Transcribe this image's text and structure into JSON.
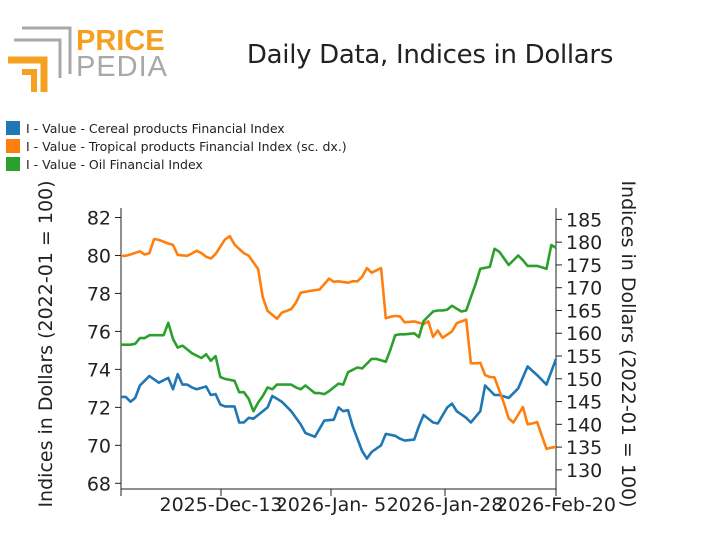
{
  "logo": {
    "line1": "PRICE",
    "line2": "PEDIA",
    "orange": "#f5a020",
    "gray": "#a8a8a8"
  },
  "chart_data": {
    "type": "line",
    "title": "Daily Data, Indices in Dollars",
    "ylabel_left": "Indices in Dollars (2022-01 = 100)",
    "ylabel_right": "Indices in Dollars (2022-01 = 100)",
    "xlabel": "",
    "x_ticks": [
      "2025-Dec-13",
      "2026-Jan- 5",
      "2026-Jan-28",
      "2026-Feb-20"
    ],
    "x_start": "2025-11-20",
    "x_end": "2026-02-20",
    "y_left": {
      "lim": [
        67.7,
        82.5
      ],
      "ticks": [
        68,
        70,
        72,
        74,
        76,
        78,
        80,
        82
      ]
    },
    "y_right": {
      "lim": [
        125.8,
        187.5
      ],
      "ticks": [
        130,
        135,
        140,
        145,
        150,
        155,
        160,
        165,
        170,
        175,
        180,
        185
      ]
    },
    "grid": false,
    "legend_position": "top-left",
    "series": [
      {
        "name": "I - Value - Cereal products Financial Index",
        "color": "#1f77b4",
        "axis": "left",
        "x": [
          "2025-11-20",
          "2025-11-21",
          "2025-11-22",
          "2025-11-23",
          "2025-11-24",
          "2025-11-26",
          "2025-11-28",
          "2025-11-30",
          "2025-12-01",
          "2025-12-02",
          "2025-12-03",
          "2025-12-04",
          "2025-12-05",
          "2025-12-06",
          "2025-12-08",
          "2025-12-09",
          "2025-12-10",
          "2025-12-11",
          "2025-12-12",
          "2025-12-14",
          "2025-12-15",
          "2025-12-16",
          "2025-12-17",
          "2025-12-18",
          "2025-12-19",
          "2025-12-21",
          "2025-12-22",
          "2025-12-23",
          "2025-12-24",
          "2025-12-26",
          "2025-12-28",
          "2025-12-29",
          "2025-12-31",
          "2026-01-02",
          "2026-01-04",
          "2026-01-05",
          "2026-01-06",
          "2026-01-07",
          "2026-01-08",
          "2026-01-10",
          "2026-01-11",
          "2026-01-12",
          "2026-01-14",
          "2026-01-15",
          "2026-01-17",
          "2026-01-18",
          "2026-01-19",
          "2026-01-21",
          "2026-01-22",
          "2026-01-23",
          "2026-01-25",
          "2026-01-26",
          "2026-01-28",
          "2026-01-29",
          "2026-01-30",
          "2026-02-01",
          "2026-02-02",
          "2026-02-04",
          "2026-02-05",
          "2026-02-07",
          "2026-02-08",
          "2026-02-10",
          "2026-02-12",
          "2026-02-14",
          "2026-02-16",
          "2026-02-18",
          "2026-02-20"
        ],
        "values": [
          72.55,
          72.55,
          72.3,
          72.5,
          73.15,
          73.65,
          73.3,
          73.55,
          72.95,
          73.75,
          73.2,
          73.2,
          73.05,
          72.95,
          73.1,
          72.65,
          72.7,
          72.15,
          72.05,
          72.05,
          71.2,
          71.2,
          71.45,
          71.4,
          71.6,
          72.0,
          72.6,
          72.45,
          72.3,
          71.8,
          71.1,
          70.65,
          70.45,
          71.3,
          71.35,
          72.0,
          71.8,
          71.85,
          71.0,
          69.7,
          69.3,
          69.65,
          70.0,
          70.6,
          70.5,
          70.35,
          70.25,
          70.3,
          71.0,
          71.6,
          71.2,
          71.15,
          72.0,
          72.2,
          71.8,
          71.45,
          71.2,
          71.8,
          73.15,
          72.65,
          72.65,
          72.5,
          73.0,
          74.15,
          73.7,
          73.2,
          74.55
        ]
      },
      {
        "name": "I - Value - Tropical products Financial Index (sc. dx.)",
        "color": "#ff7f0e",
        "axis": "right",
        "x": [
          "2025-11-20",
          "2025-11-21",
          "2025-11-22",
          "2025-11-24",
          "2025-11-25",
          "2025-11-26",
          "2025-11-27",
          "2025-11-28",
          "2025-11-30",
          "2025-12-01",
          "2025-12-02",
          "2025-12-04",
          "2025-12-05",
          "2025-12-06",
          "2025-12-07",
          "2025-12-08",
          "2025-12-09",
          "2025-12-10",
          "2025-12-12",
          "2025-12-13",
          "2025-12-14",
          "2025-12-15",
          "2025-12-16",
          "2025-12-17",
          "2025-12-19",
          "2025-12-20",
          "2025-12-21",
          "2025-12-23",
          "2025-12-24",
          "2025-12-26",
          "2025-12-27",
          "2025-12-28",
          "2025-12-30",
          "2026-01-01",
          "2026-01-02",
          "2026-01-03",
          "2026-01-04",
          "2026-01-05",
          "2026-01-07",
          "2026-01-08",
          "2026-01-09",
          "2026-01-10",
          "2026-01-11",
          "2026-01-12",
          "2026-01-14",
          "2026-01-15",
          "2026-01-16",
          "2026-01-17",
          "2026-01-18",
          "2026-01-19",
          "2026-01-21",
          "2026-01-23",
          "2026-01-24",
          "2026-01-25",
          "2026-01-26",
          "2026-01-27",
          "2026-01-29",
          "2026-01-30",
          "2026-02-01",
          "2026-02-02",
          "2026-02-03",
          "2026-02-04",
          "2026-02-05",
          "2026-02-06",
          "2026-02-07",
          "2026-02-09",
          "2026-02-10",
          "2026-02-11",
          "2026-02-13",
          "2026-02-14",
          "2026-02-15",
          "2026-02-16",
          "2026-02-18",
          "2026-02-19",
          "2026-02-20"
        ],
        "values": [
          177.0,
          177.0,
          177.3,
          178.0,
          177.3,
          177.6,
          180.7,
          180.5,
          179.7,
          179.4,
          177.2,
          177.0,
          177.5,
          178.1,
          177.6,
          176.8,
          176.4,
          177.4,
          180.6,
          181.3,
          179.5,
          178.5,
          177.6,
          177.0,
          174.1,
          167.9,
          164.9,
          163.2,
          164.5,
          165.3,
          166.7,
          168.9,
          169.3,
          169.6,
          170.8,
          172.0,
          171.3,
          171.4,
          171.1,
          171.4,
          171.4,
          172.4,
          174.3,
          173.3,
          174.3,
          163.3,
          163.6,
          163.8,
          163.7,
          162.4,
          162.6,
          162.0,
          162.6,
          159.2,
          160.6,
          159.0,
          160.4,
          162.2,
          163.0,
          153.4,
          153.4,
          153.5,
          150.8,
          150.4,
          150.3,
          144.6,
          141.3,
          140.4,
          143.8,
          140.0,
          140.2,
          140.5,
          134.6,
          134.9,
          135.0
        ]
      },
      {
        "name": "I - Value - Oil Financial Index",
        "color": "#2ca02c",
        "axis": "left",
        "x": [
          "2025-11-20",
          "2025-11-21",
          "2025-11-22",
          "2025-11-23",
          "2025-11-24",
          "2025-11-25",
          "2025-11-26",
          "2025-11-27",
          "2025-11-29",
          "2025-11-30",
          "2025-12-01",
          "2025-12-02",
          "2025-12-03",
          "2025-12-04",
          "2025-12-05",
          "2025-12-07",
          "2025-12-08",
          "2025-12-09",
          "2025-12-10",
          "2025-12-11",
          "2025-12-12",
          "2025-12-14",
          "2025-12-15",
          "2025-12-16",
          "2025-12-17",
          "2025-12-18",
          "2025-12-19",
          "2025-12-20",
          "2025-12-21",
          "2025-12-22",
          "2025-12-23",
          "2025-12-24",
          "2025-12-26",
          "2025-12-27",
          "2025-12-28",
          "2025-12-29",
          "2025-12-31",
          "2026-01-01",
          "2026-01-02",
          "2026-01-03",
          "2026-01-04",
          "2026-01-05",
          "2026-01-06",
          "2026-01-07",
          "2026-01-09",
          "2026-01-10",
          "2026-01-11",
          "2026-01-12",
          "2026-01-13",
          "2026-01-15",
          "2026-01-16",
          "2026-01-17",
          "2026-01-18",
          "2026-01-19",
          "2026-01-21",
          "2026-01-22",
          "2026-01-23",
          "2026-01-25",
          "2026-01-26",
          "2026-01-27",
          "2026-01-28",
          "2026-01-29",
          "2026-01-31",
          "2026-02-01",
          "2026-02-02",
          "2026-02-03",
          "2026-02-04",
          "2026-02-06",
          "2026-02-07",
          "2026-02-08",
          "2026-02-10",
          "2026-02-12",
          "2026-02-13",
          "2026-02-14",
          "2026-02-16",
          "2026-02-18",
          "2026-02-19",
          "2026-02-20"
        ],
        "values": [
          75.3,
          75.3,
          75.3,
          75.35,
          75.65,
          75.65,
          75.8,
          75.8,
          75.8,
          76.45,
          75.6,
          75.15,
          75.25,
          75.05,
          74.85,
          74.6,
          74.8,
          74.45,
          74.7,
          73.6,
          73.5,
          73.4,
          72.8,
          72.8,
          72.45,
          71.8,
          72.25,
          72.6,
          73.05,
          72.95,
          73.2,
          73.2,
          73.2,
          73.05,
          72.95,
          73.15,
          72.75,
          72.75,
          72.7,
          72.85,
          73.05,
          73.25,
          73.2,
          73.85,
          74.1,
          74.05,
          74.3,
          74.55,
          74.55,
          74.4,
          75.05,
          75.8,
          75.85,
          75.85,
          75.9,
          75.7,
          76.55,
          77.05,
          77.1,
          77.1,
          77.15,
          77.35,
          77.05,
          77.1,
          77.8,
          78.5,
          79.3,
          79.4,
          80.35,
          80.2,
          79.5,
          80.0,
          79.75,
          79.45,
          79.45,
          79.3,
          80.55,
          80.4
        ]
      }
    ]
  }
}
